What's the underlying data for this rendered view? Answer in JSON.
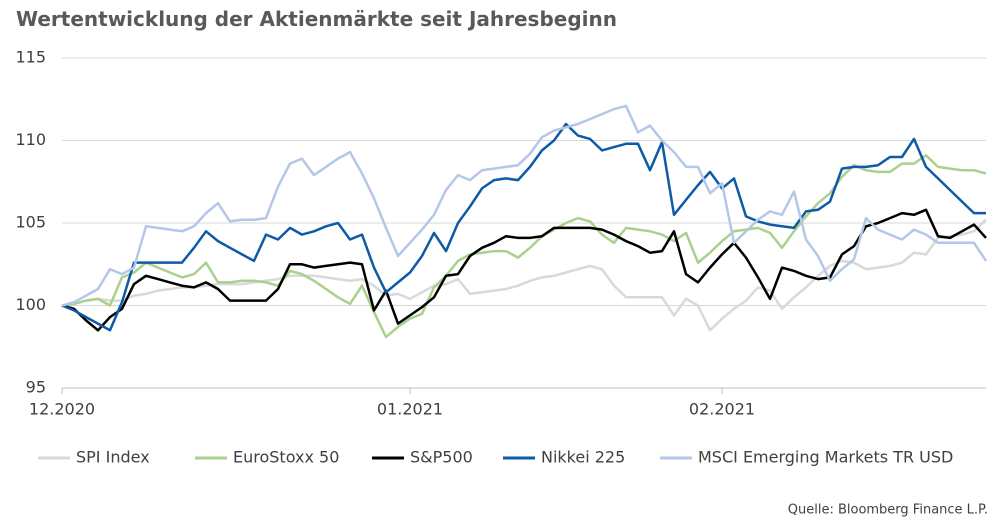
{
  "chart_data": {
    "type": "line",
    "title": "Wertentwicklung der Aktienmärkte seit Jahresbeginn",
    "source": "Quelle: Bloomberg Finance L.P.",
    "x": [
      0,
      1,
      2,
      3,
      4,
      5,
      6,
      7,
      8,
      9,
      10,
      11,
      12,
      13,
      14,
      15,
      16,
      17,
      18,
      19,
      20,
      21,
      22,
      23,
      24,
      25,
      26,
      27,
      28,
      29,
      30,
      31,
      32,
      33,
      34,
      35,
      36,
      37,
      38,
      39,
      40,
      41,
      42,
      43,
      44,
      45,
      46,
      47,
      48,
      49,
      50,
      51,
      52,
      53,
      54,
      55,
      56,
      57,
      58,
      59,
      60,
      61,
      62,
      63,
      64,
      65,
      66,
      67,
      68,
      69,
      70,
      71,
      72,
      73,
      74,
      75,
      76,
      77
    ],
    "xlim": [
      0,
      77
    ],
    "xticks": [
      {
        "value": 0,
        "label": "12.2020"
      },
      {
        "value": 29,
        "label": "01.2021"
      },
      {
        "value": 55,
        "label": "02.2021"
      }
    ],
    "ylim": [
      95,
      115
    ],
    "yticks": [
      95,
      100,
      105,
      110,
      115
    ],
    "grid": true,
    "legend": "bottom",
    "series": [
      {
        "name": "SPI Index",
        "color": "#d9d9d9",
        "values": [
          100,
          100.1,
          100.3,
          100.4,
          100.3,
          100.3,
          100.6,
          100.7,
          100.9,
          101,
          101.1,
          101.1,
          101.2,
          101.3,
          101.3,
          101.3,
          101.4,
          101.5,
          101.6,
          101.8,
          101.8,
          101.8,
          101.7,
          101.6,
          101.5,
          101.6,
          101.2,
          100.6,
          100.7,
          100.4,
          100.8,
          101.2,
          101.3,
          101.6,
          100.7,
          100.8,
          100.9,
          101,
          101.2,
          101.5,
          101.7,
          101.8,
          102,
          102.2,
          102.4,
          102.2,
          101.2,
          100.5,
          100.5,
          100.5,
          100.5,
          99.4,
          100.4,
          100,
          98.5,
          99.2,
          99.8,
          100.3,
          101.1,
          100.9,
          99.8,
          100.5,
          101.1,
          101.8,
          102.4,
          102.7,
          102.6,
          102.2,
          102.3,
          102.4,
          102.6,
          103.2,
          103.1,
          104.1,
          104.2,
          104.3,
          104.5,
          105.2
        ]
      },
      {
        "name": "EuroStoxx 50",
        "color": "#a9d18e",
        "values": [
          100,
          100.1,
          100.3,
          100.4,
          100,
          101.7,
          102,
          102.6,
          102.3,
          102,
          101.7,
          101.9,
          102.6,
          101.4,
          101.4,
          101.5,
          101.5,
          101.4,
          101.2,
          102.1,
          101.9,
          101.5,
          101,
          100.5,
          100.1,
          101.2,
          99.6,
          98.1,
          98.7,
          99.2,
          99.5,
          101.1,
          101.8,
          102.7,
          103.1,
          103.2,
          103.3,
          103.3,
          102.9,
          103.5,
          104.2,
          104.6,
          105,
          105.3,
          105.1,
          104.3,
          103.8,
          104.7,
          104.6,
          104.5,
          104.3,
          103.9,
          104.4,
          102.6,
          103.2,
          103.9,
          104.5,
          104.6,
          104.7,
          104.4,
          103.5,
          104.5,
          105.4,
          106.2,
          106.8,
          107.8,
          108.5,
          108.2,
          108.1,
          108.1,
          108.6,
          108.6,
          109.1,
          108.4,
          108.3,
          108.2,
          108.2,
          108
        ]
      },
      {
        "name": "S&P500",
        "color": "#000000",
        "values": [
          100,
          99.8,
          99.1,
          98.5,
          99.3,
          99.8,
          101.3,
          101.8,
          101.6,
          101.4,
          101.2,
          101.1,
          101.4,
          101,
          100.3,
          100.3,
          100.3,
          100.3,
          101,
          102.5,
          102.5,
          102.3,
          102.4,
          102.5,
          102.6,
          102.5,
          99.7,
          100.9,
          98.9,
          99.4,
          99.9,
          100.5,
          101.8,
          101.9,
          103,
          103.5,
          103.8,
          104.2,
          104.1,
          104.1,
          104.2,
          104.7,
          104.7,
          104.7,
          104.7,
          104.6,
          104.3,
          103.9,
          103.6,
          103.2,
          103.3,
          104.5,
          101.9,
          101.4,
          102.3,
          103.1,
          103.8,
          102.9,
          101.7,
          100.4,
          102.3,
          102.1,
          101.8,
          101.6,
          101.7,
          103.1,
          103.6,
          104.8,
          105,
          105.3,
          105.6,
          105.5,
          105.8,
          104.2,
          104.1,
          104.5,
          104.9,
          104.1
        ]
      },
      {
        "name": "Nikkei 225",
        "color": "#0f5aa6",
        "values": [
          100,
          99.7,
          99.3,
          98.9,
          98.5,
          100.2,
          102.6,
          102.6,
          102.6,
          102.6,
          102.6,
          103.5,
          104.5,
          103.9,
          103.5,
          103.1,
          102.7,
          104.3,
          104,
          104.7,
          104.3,
          104.5,
          104.8,
          105,
          104,
          104.3,
          102.3,
          100.8,
          101.4,
          102,
          103,
          104.4,
          103.3,
          105,
          106,
          107.1,
          107.6,
          107.7,
          107.6,
          108.4,
          109.4,
          110,
          111,
          110.3,
          110.1,
          109.4,
          109.6,
          109.8,
          109.8,
          108.2,
          109.9,
          105.5,
          106.4,
          107.3,
          108.1,
          107.1,
          107.7,
          105.4,
          105.1,
          104.9,
          104.8,
          104.7,
          105.7,
          105.8,
          106.3,
          108.3,
          108.4,
          108.4,
          108.5,
          109,
          109,
          110.1,
          108.4,
          107.7,
          107,
          106.3,
          105.6,
          105.6
        ]
      },
      {
        "name": "MSCI Emerging Markets TR USD",
        "color": "#b4c7e7",
        "values": [
          100,
          100.2,
          100.6,
          101,
          102.2,
          101.9,
          102.3,
          104.8,
          104.7,
          104.6,
          104.5,
          104.8,
          105.6,
          106.2,
          105.1,
          105.2,
          105.2,
          105.3,
          107.2,
          108.6,
          108.9,
          107.9,
          108.4,
          108.9,
          109.3,
          108,
          106.5,
          104.7,
          103,
          103.8,
          104.6,
          105.5,
          107,
          107.9,
          107.6,
          108.2,
          108.3,
          108.4,
          108.5,
          109.2,
          110.2,
          110.6,
          110.8,
          111,
          111.3,
          111.6,
          111.9,
          112.1,
          110.5,
          110.9,
          110,
          109.3,
          108.4,
          108.4,
          106.8,
          107.4,
          103.8,
          104.5,
          105.2,
          105.7,
          105.5,
          106.9,
          104,
          103,
          101.5,
          102.2,
          102.8,
          105.3,
          104.6,
          104.3,
          104,
          104.6,
          104.3,
          103.8,
          103.8,
          103.8,
          103.8,
          102.7
        ]
      }
    ]
  }
}
